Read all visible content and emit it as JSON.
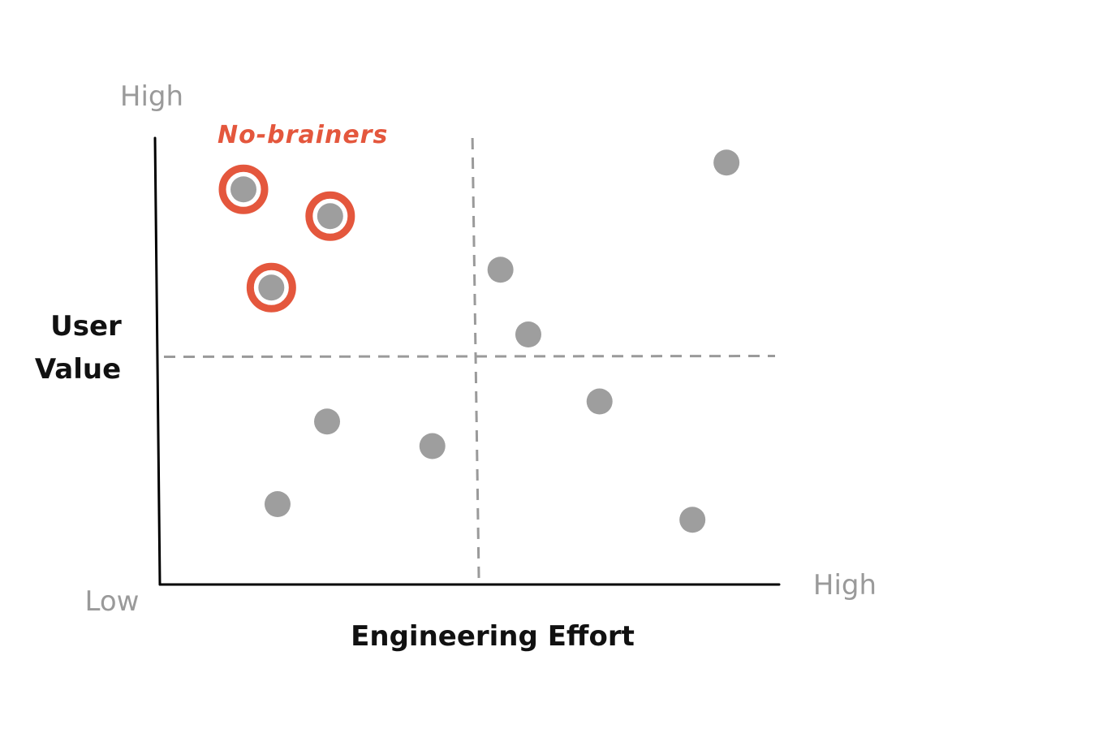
{
  "chart_data": {
    "type": "scatter",
    "x_axis": {
      "label": "Engineering Effort",
      "low_label": "Low",
      "high_label": "High",
      "range": [
        0,
        100
      ]
    },
    "y_axis": {
      "label_lines": [
        "User",
        "Value"
      ],
      "high_label": "High",
      "range": [
        0,
        100
      ]
    },
    "quadrant_dividers": {
      "x": 51,
      "y": 51
    },
    "annotation": {
      "text": "No-brainers",
      "color": "#e4573d"
    },
    "points": [
      {
        "x": 13.5,
        "y": 88.5,
        "highlighted": true
      },
      {
        "x": 27.5,
        "y": 82.5,
        "highlighted": true
      },
      {
        "x": 18,
        "y": 66.5,
        "highlighted": true
      },
      {
        "x": 91.5,
        "y": 94.5,
        "highlighted": false
      },
      {
        "x": 55,
        "y": 70.5,
        "highlighted": false
      },
      {
        "x": 59.5,
        "y": 56,
        "highlighted": false
      },
      {
        "x": 71,
        "y": 41,
        "highlighted": false
      },
      {
        "x": 27,
        "y": 36.5,
        "highlighted": false
      },
      {
        "x": 44,
        "y": 31,
        "highlighted": false
      },
      {
        "x": 19,
        "y": 18,
        "highlighted": false
      },
      {
        "x": 86,
        "y": 14.5,
        "highlighted": false
      }
    ],
    "colors": {
      "point": "#9e9e9e",
      "highlight_ring": "#e4573d",
      "axis": "#000000",
      "divider": "#9a9a9a",
      "muted_text": "#9a9a9a",
      "strong_text": "#111111"
    },
    "grid": false,
    "legend": "none"
  }
}
